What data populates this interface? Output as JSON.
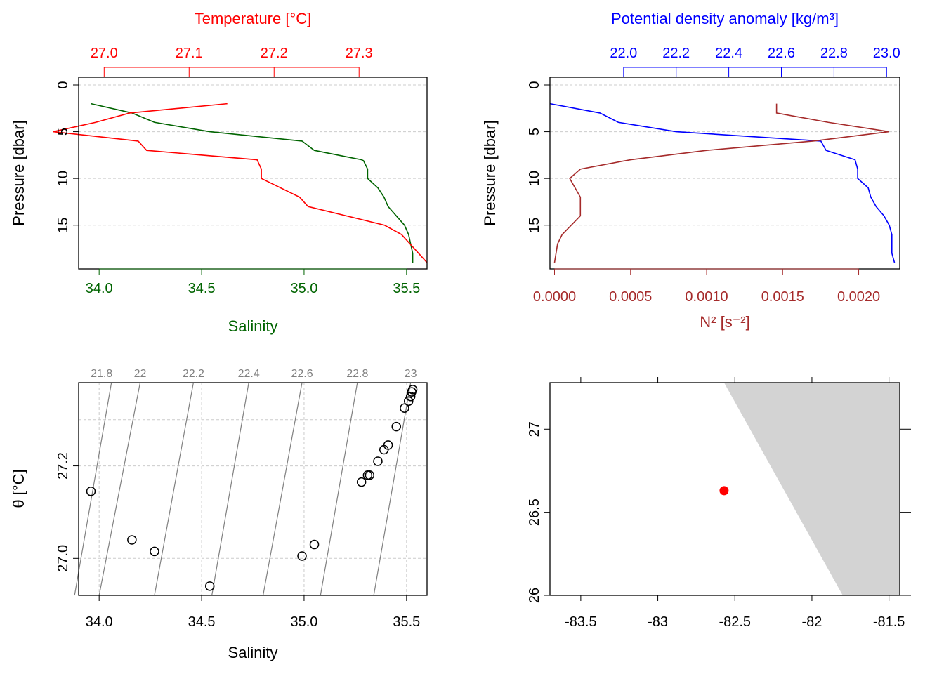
{
  "chart_data": [
    {
      "type": "line",
      "panel": "salinity-temperature-profile",
      "xlabel": "Salinity",
      "x2label": "Temperature [°C]",
      "ylabel": "Pressure [dbar]",
      "xlim": [
        33.9,
        35.6
      ],
      "x2lim": [
        26.97,
        27.38
      ],
      "ylim": [
        19,
        -1
      ],
      "x_ticks": [
        "34.0",
        "34.5",
        "35.0",
        "35.5"
      ],
      "x2_ticks": [
        "27.0",
        "27.1",
        "27.2",
        "27.3"
      ],
      "y_ticks": [
        "0",
        "5",
        "10",
        "15"
      ],
      "grid": true,
      "colors": {
        "salinity": "#006400",
        "temperature": "#ff0000",
        "grid": "#cccccc"
      },
      "series": [
        {
          "axis": "x",
          "points": [
            [
              33.96,
              2
            ],
            [
              34.16,
              3
            ],
            [
              34.27,
              4
            ],
            [
              34.54,
              5
            ],
            [
              34.99,
              6
            ],
            [
              35.05,
              7
            ],
            [
              35.28,
              8
            ],
            [
              35.29,
              8.1
            ],
            [
              35.31,
              9
            ],
            [
              35.31,
              10
            ],
            [
              35.36,
              11
            ],
            [
              35.39,
              12
            ],
            [
              35.41,
              13
            ],
            [
              35.45,
              14
            ],
            [
              35.49,
              15
            ],
            [
              35.51,
              16
            ],
            [
              35.52,
              17
            ],
            [
              35.53,
              18
            ],
            [
              35.53,
              19
            ]
          ]
        },
        {
          "axis": "x2",
          "points": [
            [
              27.145,
              2
            ],
            [
              27.03,
              3
            ],
            [
              26.99,
              4
            ],
            [
              26.94,
              5
            ],
            [
              27.03,
              5.9
            ],
            [
              27.04,
              6
            ],
            [
              27.05,
              7
            ],
            [
              27.18,
              8
            ],
            [
              27.185,
              9
            ],
            [
              27.185,
              10
            ],
            [
              27.23,
              12
            ],
            [
              27.24,
              13
            ],
            [
              27.33,
              15
            ],
            [
              27.35,
              16
            ],
            [
              27.36,
              17
            ],
            [
              27.37,
              18
            ],
            [
              27.38,
              19
            ]
          ]
        }
      ]
    },
    {
      "type": "line",
      "panel": "density-n2-profile",
      "xlabel": "N² [s⁻²]",
      "x2label": "Potential density anomaly [kg/m³]",
      "ylabel": "Pressure [dbar]",
      "xlim": [
        -3e-05,
        0.00227
      ],
      "x2lim": [
        21.72,
        23.05
      ],
      "ylim": [
        19,
        -1
      ],
      "x_ticks": [
        "0.0000",
        "0.0005",
        "0.0010",
        "0.0015",
        "0.0020"
      ],
      "x2_ticks": [
        "22.0",
        "22.2",
        "22.4",
        "22.6",
        "22.8",
        "23.0"
      ],
      "y_ticks": [
        "0",
        "5",
        "10",
        "15"
      ],
      "grid": true,
      "colors": {
        "density": "#0000ff",
        "n2": "#a52a2a",
        "grid": "#cccccc"
      },
      "series": [
        {
          "axis": "x2",
          "points": [
            [
              21.72,
              2
            ],
            [
              21.91,
              3
            ],
            [
              21.98,
              4
            ],
            [
              22.2,
              5
            ],
            [
              22.75,
              6
            ],
            [
              22.77,
              7
            ],
            [
              22.88,
              8
            ],
            [
              22.89,
              9
            ],
            [
              22.89,
              10
            ],
            [
              22.93,
              11
            ],
            [
              22.94,
              12
            ],
            [
              22.96,
              13
            ],
            [
              22.99,
              14
            ],
            [
              23.01,
              15
            ],
            [
              23.02,
              16
            ],
            [
              23.02,
              17
            ],
            [
              23.02,
              18
            ],
            [
              23.03,
              19
            ]
          ]
        },
        {
          "axis": "x",
          "points": [
            [
              0.00146,
              2
            ],
            [
              0.00146,
              3
            ],
            [
              0.0018,
              4
            ],
            [
              0.0022,
              5
            ],
            [
              0.0017,
              6
            ],
            [
              0.001,
              7
            ],
            [
              0.0005,
              8
            ],
            [
              0.00017,
              9
            ],
            [
              0.0001,
              10
            ],
            [
              0.00017,
              12
            ],
            [
              0.00017,
              14
            ],
            [
              5e-05,
              16
            ],
            [
              2e-05,
              17
            ],
            [
              0.0,
              19
            ]
          ]
        }
      ]
    },
    {
      "type": "scatter",
      "panel": "ts-diagram",
      "xlabel": "Salinity",
      "ylabel": "θ [°C]",
      "xlim": [
        33.9,
        35.6
      ],
      "ylim": [
        26.92,
        27.38
      ],
      "x_ticks": [
        "34.0",
        "34.5",
        "35.0",
        "35.5"
      ],
      "y_ticks": [
        "27.0",
        "27.2"
      ],
      "grid": true,
      "isopycnal_labels": [
        "21.8",
        "22",
        "22.2",
        "22.4",
        "22.6",
        "22.8",
        "23"
      ],
      "colors": {
        "isopycnals": "#808080",
        "points": "#000000",
        "grid": "#cccccc"
      },
      "points": [
        [
          33.96,
          27.145
        ],
        [
          34.16,
          27.04
        ],
        [
          34.27,
          27.015
        ],
        [
          34.54,
          26.94
        ],
        [
          34.99,
          27.005
        ],
        [
          35.05,
          27.03
        ],
        [
          35.28,
          27.165
        ],
        [
          35.31,
          27.18
        ],
        [
          35.32,
          27.18
        ],
        [
          35.36,
          27.21
        ],
        [
          35.39,
          27.235
        ],
        [
          35.41,
          27.245
        ],
        [
          35.45,
          27.285
        ],
        [
          35.49,
          27.325
        ],
        [
          35.51,
          27.34
        ],
        [
          35.52,
          27.35
        ],
        [
          35.525,
          27.36
        ],
        [
          35.53,
          27.365
        ]
      ]
    },
    {
      "type": "scatter",
      "panel": "station-map",
      "xlim": [
        -83.7,
        -81.43
      ],
      "ylim": [
        26,
        27.28
      ],
      "x_ticks": [
        "-83.5",
        "-83",
        "-82.5",
        "-82",
        "-81.5"
      ],
      "y_ticks": [
        "26",
        "26.5",
        "27"
      ],
      "land_polygon": [
        [
          -82.57,
          27.28
        ],
        [
          -81.43,
          27.28
        ],
        [
          -81.43,
          26.0
        ],
        [
          -81.8,
          26.0
        ]
      ],
      "colors": {
        "land": "#d3d3d3",
        "station": "#ff0000"
      },
      "points": [
        [
          -82.57,
          26.63
        ]
      ]
    }
  ]
}
